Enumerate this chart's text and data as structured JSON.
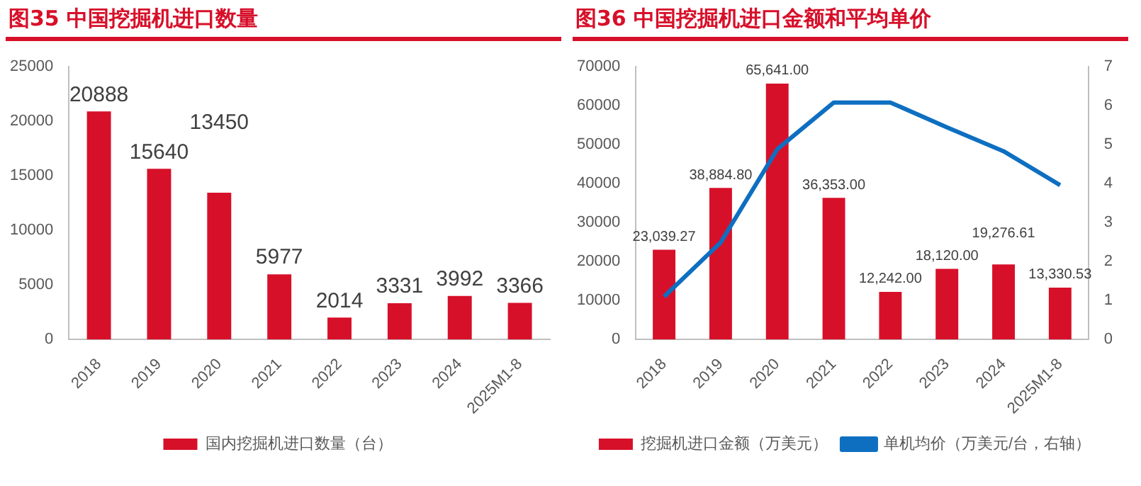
{
  "chart_data": [
    {
      "type": "bar",
      "title": "图35  中国挖掘机进口数量",
      "categories": [
        "2018",
        "2019",
        "2020",
        "2021",
        "2022",
        "2023",
        "2024",
        "2025M1-8"
      ],
      "series": [
        {
          "name": "国内挖掘机进口数量（台）",
          "color": "#d7102a",
          "values": [
            20888,
            15640,
            13450,
            5977,
            2014,
            3331,
            3992,
            3366
          ]
        }
      ],
      "ylim": [
        0,
        25000
      ],
      "yticks": [
        0,
        5000,
        10000,
        15000,
        20000,
        25000
      ],
      "data_labels": true,
      "legend": "bottom",
      "grid": false
    },
    {
      "type": "bar",
      "title": "图36  中国挖掘机进口金额和平均单价",
      "categories": [
        "2018",
        "2019",
        "2020",
        "2021",
        "2022",
        "2023",
        "2024",
        "2025M1-8"
      ],
      "series": [
        {
          "name": "挖掘机进口金额（万美元）",
          "color": "#d7102a",
          "values": [
            23039.27,
            38884.8,
            65641,
            36353,
            12242,
            18120,
            19276.61,
            13330.53
          ],
          "value_labels": [
            "23,039.27",
            "38,884.80",
            "65,641.00",
            "36,353.00",
            "12,242.00",
            "18,120.00",
            "19,276.61",
            "13,330.53"
          ]
        },
        {
          "name": "单机均价（万美元/台，右轴）",
          "type": "line",
          "axis": "y2",
          "color": "#0e6fc1",
          "values": [
            1.1,
            2.49,
            4.88,
            6.08,
            6.08,
            5.44,
            4.83,
            3.96
          ]
        }
      ],
      "ylim": [
        0,
        70000
      ],
      "yticks": [
        0,
        10000,
        20000,
        30000,
        40000,
        50000,
        60000,
        70000
      ],
      "y2lim": [
        0,
        7
      ],
      "y2ticks": [
        0,
        1,
        2,
        3,
        4,
        5,
        6,
        7
      ],
      "legend": "bottom",
      "grid": false,
      "marker": "none"
    }
  ]
}
